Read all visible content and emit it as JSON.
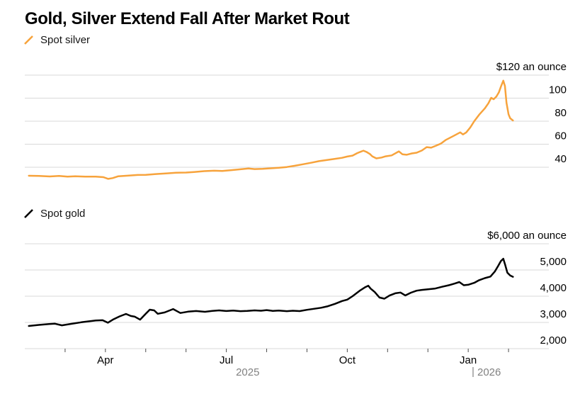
{
  "title": "Gold, Silver Extend Fall After Market Rout",
  "legend": [
    {
      "label": "Spot silver",
      "color": "#F7A33C"
    },
    {
      "label": "Spot gold",
      "color": "#000000"
    }
  ],
  "x_axis": {
    "unit": "months, 0 = start Feb 2025",
    "tick_months": [
      1,
      2,
      3,
      4,
      5,
      6,
      7,
      8,
      9,
      10,
      11,
      12
    ],
    "month_labels": [
      {
        "m": 2,
        "label": "Apr"
      },
      {
        "m": 5,
        "label": "Jul"
      },
      {
        "m": 8,
        "label": "Oct"
      },
      {
        "m": 11,
        "label": "Jan"
      }
    ],
    "year_labels": [
      {
        "label": "2025",
        "center_m": 5.53,
        "divider": false
      },
      {
        "label": "2026",
        "at_m": 11.12,
        "divider": true
      }
    ]
  },
  "chart_data": [
    {
      "type": "line",
      "id": "silver",
      "series_name": "Spot silver",
      "color": "#F7A33C",
      "unit_label": "$120 an ounce",
      "yticks": [
        120,
        100,
        80,
        60,
        40
      ],
      "ytick_labels": [
        "$120 an ounce",
        "100",
        "80",
        "60",
        "40"
      ],
      "points": [
        [
          0.1,
          32.6
        ],
        [
          0.35,
          32.4
        ],
        [
          0.62,
          32.0
        ],
        [
          0.85,
          32.4
        ],
        [
          1.06,
          31.9
        ],
        [
          1.25,
          32.2
        ],
        [
          1.5,
          31.8
        ],
        [
          1.76,
          31.9
        ],
        [
          1.95,
          31.4
        ],
        [
          2.07,
          29.9
        ],
        [
          2.18,
          30.6
        ],
        [
          2.32,
          32.2
        ],
        [
          2.55,
          32.7
        ],
        [
          2.8,
          33.3
        ],
        [
          3.0,
          33.4
        ],
        [
          3.25,
          34.1
        ],
        [
          3.5,
          34.6
        ],
        [
          3.75,
          35.2
        ],
        [
          4.0,
          35.4
        ],
        [
          4.2,
          35.9
        ],
        [
          4.45,
          36.6
        ],
        [
          4.7,
          37.0
        ],
        [
          4.9,
          36.8
        ],
        [
          5.1,
          37.4
        ],
        [
          5.35,
          38.2
        ],
        [
          5.55,
          38.9
        ],
        [
          5.7,
          38.4
        ],
        [
          5.9,
          38.6
        ],
        [
          6.1,
          39.1
        ],
        [
          6.3,
          39.6
        ],
        [
          6.5,
          40.2
        ],
        [
          6.7,
          41.3
        ],
        [
          6.9,
          42.6
        ],
        [
          7.1,
          43.9
        ],
        [
          7.3,
          45.3
        ],
        [
          7.5,
          46.3
        ],
        [
          7.7,
          47.3
        ],
        [
          7.87,
          48.2
        ],
        [
          8.0,
          49.3
        ],
        [
          8.13,
          50.1
        ],
        [
          8.25,
          52.3
        ],
        [
          8.4,
          54.4
        ],
        [
          8.48,
          53.2
        ],
        [
          8.56,
          51.5
        ],
        [
          8.62,
          49.5
        ],
        [
          8.72,
          47.7
        ],
        [
          8.85,
          48.4
        ],
        [
          8.95,
          49.5
        ],
        [
          9.1,
          50.3
        ],
        [
          9.28,
          53.8
        ],
        [
          9.37,
          51.2
        ],
        [
          9.47,
          50.8
        ],
        [
          9.6,
          52.0
        ],
        [
          9.72,
          52.6
        ],
        [
          9.85,
          54.5
        ],
        [
          9.97,
          57.5
        ],
        [
          10.08,
          57.0
        ],
        [
          10.2,
          58.7
        ],
        [
          10.32,
          60.5
        ],
        [
          10.45,
          63.8
        ],
        [
          10.62,
          66.9
        ],
        [
          10.8,
          70.3
        ],
        [
          10.87,
          68.5
        ],
        [
          10.95,
          70.2
        ],
        [
          11.05,
          74.5
        ],
        [
          11.15,
          80.0
        ],
        [
          11.28,
          86.0
        ],
        [
          11.41,
          91.0
        ],
        [
          11.5,
          95.5
        ],
        [
          11.57,
          100.3
        ],
        [
          11.63,
          99.0
        ],
        [
          11.7,
          101.5
        ],
        [
          11.76,
          105.0
        ],
        [
          11.81,
          110.0
        ],
        [
          11.87,
          115.2
        ],
        [
          11.91,
          110.5
        ],
        [
          11.95,
          96.0
        ],
        [
          12.0,
          86.0
        ],
        [
          12.04,
          82.5
        ],
        [
          12.11,
          80.6
        ]
      ]
    },
    {
      "type": "line",
      "id": "gold",
      "series_name": "Spot gold",
      "color": "#000000",
      "unit_label": "$6,000 an ounce",
      "yticks": [
        6000,
        5000,
        4000,
        3000,
        2000
      ],
      "ytick_labels": [
        "$6,000 an ounce",
        "5,000",
        "4,000",
        "3,000",
        "2,000"
      ],
      "points": [
        [
          0.1,
          2865
        ],
        [
          0.35,
          2905
        ],
        [
          0.6,
          2940
        ],
        [
          0.75,
          2950
        ],
        [
          0.92,
          2890
        ],
        [
          1.15,
          2945
        ],
        [
          1.4,
          3005
        ],
        [
          1.58,
          3040
        ],
        [
          1.76,
          3075
        ],
        [
          1.93,
          3085
        ],
        [
          2.06,
          2990
        ],
        [
          2.2,
          3120
        ],
        [
          2.35,
          3230
        ],
        [
          2.51,
          3325
        ],
        [
          2.63,
          3245
        ],
        [
          2.73,
          3220
        ],
        [
          2.86,
          3105
        ],
        [
          3.0,
          3330
        ],
        [
          3.1,
          3487
        ],
        [
          3.21,
          3460
        ],
        [
          3.3,
          3330
        ],
        [
          3.47,
          3380
        ],
        [
          3.68,
          3510
        ],
        [
          3.86,
          3360
        ],
        [
          4.05,
          3410
        ],
        [
          4.25,
          3435
        ],
        [
          4.47,
          3405
        ],
        [
          4.65,
          3440
        ],
        [
          4.82,
          3460
        ],
        [
          5.0,
          3435
        ],
        [
          5.17,
          3450
        ],
        [
          5.35,
          3430
        ],
        [
          5.52,
          3440
        ],
        [
          5.7,
          3460
        ],
        [
          5.86,
          3445
        ],
        [
          6.0,
          3470
        ],
        [
          6.15,
          3440
        ],
        [
          6.3,
          3455
        ],
        [
          6.5,
          3430
        ],
        [
          6.65,
          3445
        ],
        [
          6.82,
          3432
        ],
        [
          7.0,
          3480
        ],
        [
          7.17,
          3520
        ],
        [
          7.35,
          3560
        ],
        [
          7.52,
          3620
        ],
        [
          7.7,
          3710
        ],
        [
          7.87,
          3815
        ],
        [
          8.0,
          3870
        ],
        [
          8.13,
          4000
        ],
        [
          8.31,
          4210
        ],
        [
          8.45,
          4350
        ],
        [
          8.52,
          4400
        ],
        [
          8.58,
          4290
        ],
        [
          8.68,
          4160
        ],
        [
          8.8,
          3950
        ],
        [
          8.92,
          3905
        ],
        [
          9.05,
          4030
        ],
        [
          9.19,
          4110
        ],
        [
          9.32,
          4140
        ],
        [
          9.44,
          4030
        ],
        [
          9.58,
          4135
        ],
        [
          9.72,
          4210
        ],
        [
          9.85,
          4240
        ],
        [
          10.0,
          4265
        ],
        [
          10.17,
          4290
        ],
        [
          10.35,
          4360
        ],
        [
          10.52,
          4420
        ],
        [
          10.66,
          4480
        ],
        [
          10.78,
          4540
        ],
        [
          10.89,
          4420
        ],
        [
          11.01,
          4440
        ],
        [
          11.15,
          4510
        ],
        [
          11.27,
          4610
        ],
        [
          11.41,
          4690
        ],
        [
          11.55,
          4750
        ],
        [
          11.66,
          4940
        ],
        [
          11.74,
          5150
        ],
        [
          11.81,
          5340
        ],
        [
          11.87,
          5430
        ],
        [
          11.92,
          5180
        ],
        [
          11.97,
          4900
        ],
        [
          12.04,
          4790
        ],
        [
          12.11,
          4740
        ]
      ]
    }
  ]
}
